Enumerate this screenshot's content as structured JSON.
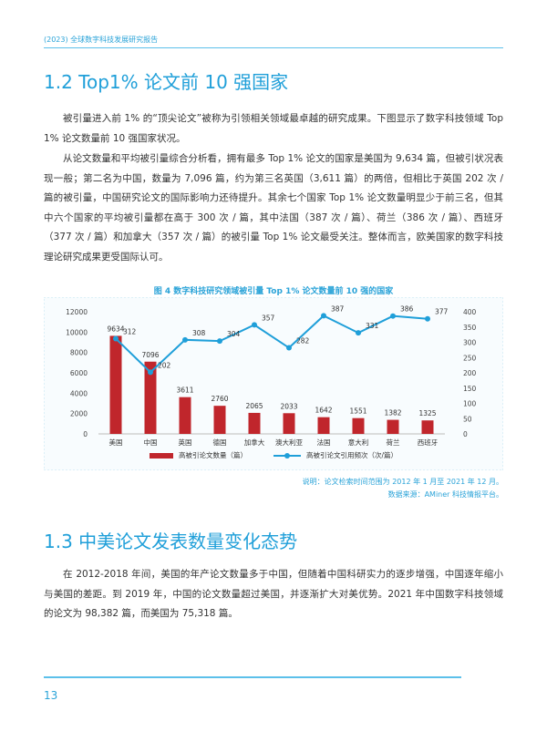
{
  "header": {
    "title": "(2023) 全球数字科技发展研究报告"
  },
  "section1": {
    "title": "1.2 Top1% 论文前 10 强国家",
    "para1": "被引量进入前 1% 的“顶尖论文”被称为引领相关领域最卓越的研究成果。下图显示了数字科技领域 Top 1% 论文数量前 10 强国家状况。",
    "para2": "从论文数量和平均被引量综合分析看，拥有最多 Top 1% 论文的国家是美国为 9,634 篇，但被引状况表现一般；第二名为中国，数量为 7,096 篇，约为第三名英国（3,611 篇）的两倍，但相比于英国 202 次 / 篇的被引量，中国研究论文的国际影响力还待提升。其余七个国家 Top 1% 论文数量明显少于前三名，但其中六个国家的平均被引量都在高于 300 次 / 篇，其中法国（387 次 / 篇）、荷兰（386 次 / 篇）、西班牙（377 次 / 篇）和加拿大（357 次 / 篇）的被引量 Top 1% 论文最受关注。整体而言，欧美国家的数字科技理论研究成果更受国际认可。"
  },
  "chart_data": {
    "type": "bar+line",
    "title": "图 4 数字科技研究领域被引量 Top 1% 论文数量前 10 强的国家",
    "categories": [
      "美国",
      "中国",
      "英国",
      "德国",
      "加拿大",
      "澳大利亚",
      "法国",
      "意大利",
      "荷兰",
      "西班牙"
    ],
    "series": [
      {
        "name": "高被引论文数量（篇）",
        "type": "bar",
        "axis": "left",
        "color": "#c0262c",
        "values": [
          9634,
          7096,
          3611,
          2760,
          2065,
          2033,
          1642,
          1551,
          1382,
          1325
        ]
      },
      {
        "name": "高被引论文引用频次（次/篇）",
        "type": "line",
        "axis": "right",
        "color": "#1f9fd9",
        "values": [
          312,
          202,
          308,
          304,
          357,
          282,
          387,
          331,
          386,
          377
        ]
      }
    ],
    "y_left": {
      "min": 0,
      "max": 12000,
      "ticks": [
        "0",
        "2000",
        "4000",
        "6000",
        "8000",
        "10000",
        "12000"
      ]
    },
    "y_right": {
      "min": 0,
      "max": 400,
      "ticks": [
        "0",
        "50",
        "100",
        "150",
        "200",
        "250",
        "300",
        "350",
        "400"
      ]
    },
    "grid": false,
    "legend": "bottom-center"
  },
  "notes": {
    "line1": "说明：论文检索时间范围为 2012 年 1 月至 2021 年 12 月。",
    "line2": "数据来源：AMiner 科技情报平台。"
  },
  "section2": {
    "title": "1.3 中美论文发表数量变化态势",
    "para1": "在 2012-2018 年间，美国的年产论文数量多于中国，但随着中国科研实力的逐步增强，中国逐年缩小与美国的差距。到 2019 年，中国的论文数量超过美国，并逐渐扩大对美优势。2021 年中国数字科技领域的论文为 98,382 篇，而美国为 75,318 篇。"
  },
  "footer": {
    "page_number": "13"
  }
}
